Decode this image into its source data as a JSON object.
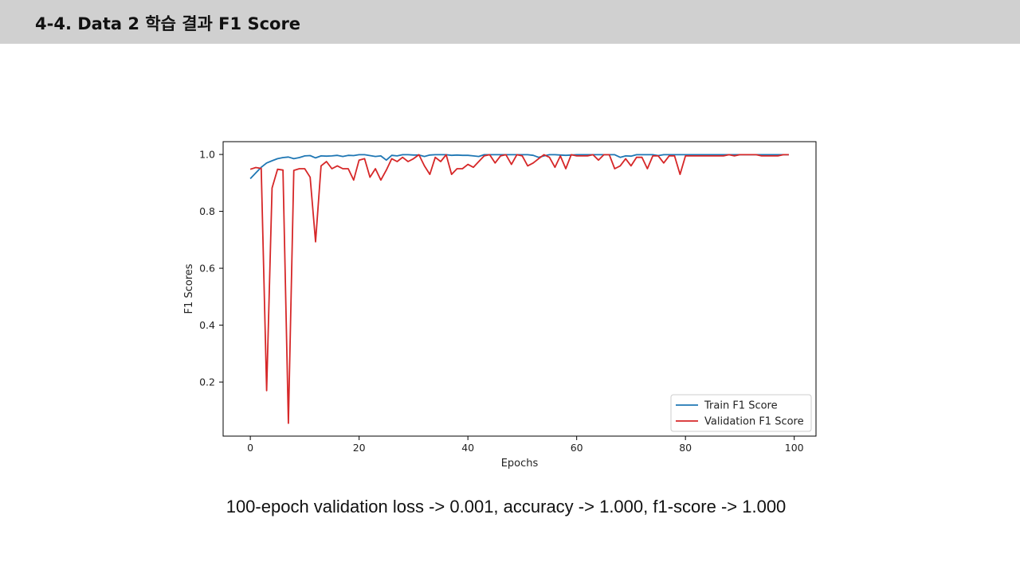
{
  "slide": {
    "title": "4-4. Data 2 학습 결과 F1 Score",
    "caption": "100-epoch validation loss -> 0.001, accuracy -> 1.000, f1-score -> 1.000"
  },
  "chart_data": {
    "type": "line",
    "xlabel": "Epochs",
    "ylabel": "F1 Scores",
    "xlim": [
      -5,
      104
    ],
    "ylim": [
      0.01,
      1.045
    ],
    "xticks": [
      0,
      20,
      40,
      60,
      80,
      100
    ],
    "xtick_labels": [
      "0",
      "20",
      "40",
      "60",
      "80",
      "100"
    ],
    "yticks": [
      0.2,
      0.4,
      0.6,
      0.8,
      1.0
    ],
    "ytick_labels": [
      "0.2",
      "0.4",
      "0.6",
      "0.8",
      "1.0"
    ],
    "grid": false,
    "legend_position": "bottom-right",
    "x": [
      0,
      1,
      2,
      3,
      4,
      5,
      6,
      7,
      8,
      9,
      10,
      11,
      12,
      13,
      14,
      15,
      16,
      17,
      18,
      19,
      20,
      21,
      22,
      23,
      24,
      25,
      26,
      27,
      28,
      29,
      30,
      31,
      32,
      33,
      34,
      35,
      36,
      37,
      38,
      39,
      40,
      41,
      42,
      43,
      44,
      45,
      46,
      47,
      48,
      49,
      50,
      51,
      52,
      53,
      54,
      55,
      56,
      57,
      58,
      59,
      60,
      61,
      62,
      63,
      64,
      65,
      66,
      67,
      68,
      69,
      70,
      71,
      72,
      73,
      74,
      75,
      76,
      77,
      78,
      79,
      80,
      81,
      82,
      83,
      84,
      85,
      86,
      87,
      88,
      89,
      90,
      91,
      92,
      93,
      94,
      95,
      96,
      97,
      98,
      99
    ],
    "series": [
      {
        "name": "Train F1 Score",
        "color": "#1f77b4",
        "values": [
          0.915,
          0.935,
          0.955,
          0.97,
          0.978,
          0.985,
          0.989,
          0.991,
          0.985,
          0.989,
          0.995,
          0.996,
          0.988,
          0.995,
          0.994,
          0.995,
          0.997,
          0.993,
          0.997,
          0.996,
          0.999,
          0.999,
          0.996,
          0.993,
          0.995,
          0.98,
          0.997,
          0.995,
          0.999,
          0.999,
          0.998,
          0.998,
          0.993,
          0.998,
          0.999,
          0.999,
          0.999,
          0.997,
          0.998,
          0.997,
          0.997,
          0.995,
          0.993,
          0.999,
          0.999,
          0.999,
          0.999,
          0.999,
          0.999,
          0.999,
          0.999,
          0.999,
          0.997,
          0.99,
          0.995,
          0.999,
          0.999,
          0.998,
          0.997,
          0.998,
          0.999,
          0.999,
          0.999,
          0.999,
          0.999,
          0.999,
          0.999,
          0.999,
          0.99,
          0.995,
          0.994,
          0.999,
          0.999,
          0.999,
          0.999,
          0.996,
          0.999,
          0.999,
          0.999,
          0.999,
          0.999,
          0.999,
          0.999,
          0.999,
          0.999,
          0.999,
          0.999,
          0.999,
          0.999,
          0.999,
          0.999,
          0.999,
          0.999,
          0.999,
          0.999,
          0.999,
          0.999,
          0.999,
          0.999,
          0.999
        ]
      },
      {
        "name": "Validation F1 Score",
        "color": "#d62728",
        "values": [
          0.948,
          0.954,
          0.951,
          0.17,
          0.882,
          0.948,
          0.945,
          0.055,
          0.944,
          0.95,
          0.95,
          0.92,
          0.693,
          0.96,
          0.975,
          0.95,
          0.96,
          0.95,
          0.95,
          0.91,
          0.98,
          0.985,
          0.92,
          0.95,
          0.91,
          0.945,
          0.985,
          0.975,
          0.99,
          0.975,
          0.985,
          0.999,
          0.96,
          0.93,
          0.99,
          0.975,
          0.999,
          0.93,
          0.95,
          0.95,
          0.965,
          0.955,
          0.975,
          0.995,
          0.999,
          0.97,
          0.995,
          0.999,
          0.965,
          0.999,
          0.995,
          0.96,
          0.97,
          0.985,
          0.999,
          0.99,
          0.955,
          0.995,
          0.95,
          0.999,
          0.995,
          0.995,
          0.995,
          0.999,
          0.98,
          0.999,
          0.999,
          0.95,
          0.96,
          0.985,
          0.96,
          0.99,
          0.99,
          0.95,
          0.995,
          0.995,
          0.97,
          0.995,
          0.995,
          0.93,
          0.995,
          0.995,
          0.995,
          0.995,
          0.995,
          0.995,
          0.995,
          0.995,
          0.999,
          0.995,
          0.999,
          0.999,
          0.999,
          0.999,
          0.995,
          0.995,
          0.995,
          0.995,
          0.999,
          0.999
        ]
      }
    ]
  }
}
